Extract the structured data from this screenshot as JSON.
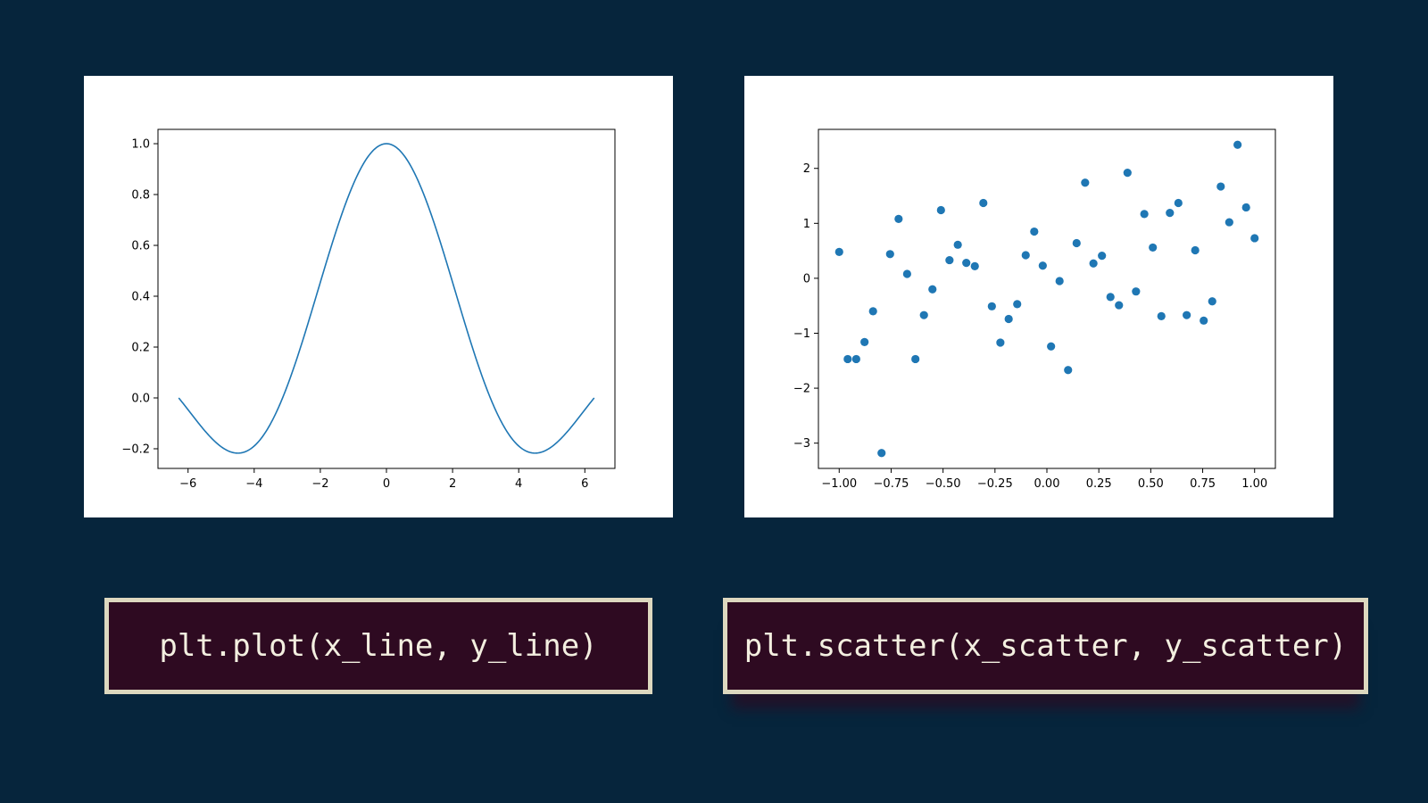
{
  "colors": {
    "background": "#06253c",
    "card": "#ffffff",
    "series": "#1f77b4",
    "code_bg": "#2e0a21",
    "code_border": "#ddd8bf",
    "code_text": "#f3efe0"
  },
  "captions": {
    "line": "plt.plot(x_line, y_line)",
    "scatter": "plt.scatter(x_scatter, y_scatter)"
  },
  "chart_data": [
    {
      "type": "line",
      "title": "",
      "xlabel": "",
      "ylabel": "",
      "function": "sin(x)/x (sampled curve)",
      "x_range": [
        -6.2832,
        6.2832
      ],
      "samples": 400,
      "xlim": [
        -6.91,
        6.91
      ],
      "ylim": [
        -0.2773,
        1.0563
      ],
      "xticks": [
        -6,
        -4,
        -2,
        0,
        2,
        4,
        6
      ],
      "xtick_labels": [
        "−6",
        "−4",
        "−2",
        "0",
        "2",
        "4",
        "6"
      ],
      "yticks": [
        -0.2,
        0.0,
        0.2,
        0.4,
        0.6,
        0.8,
        1.0
      ],
      "ytick_labels": [
        "−0.2",
        "0.0",
        "0.2",
        "0.4",
        "0.6",
        "0.8",
        "1.0"
      ],
      "grid": false,
      "legend": "none"
    },
    {
      "type": "scatter",
      "title": "",
      "xlabel": "",
      "ylabel": "",
      "x": [
        -1.0,
        -0.959,
        -0.918,
        -0.878,
        -0.837,
        -0.796,
        -0.755,
        -0.714,
        -0.673,
        -0.633,
        -0.592,
        -0.551,
        -0.51,
        -0.469,
        -0.429,
        -0.388,
        -0.347,
        -0.306,
        -0.265,
        -0.224,
        -0.184,
        -0.143,
        -0.102,
        -0.061,
        -0.02,
        0.02,
        0.061,
        0.102,
        0.143,
        0.184,
        0.224,
        0.265,
        0.306,
        0.347,
        0.388,
        0.429,
        0.469,
        0.51,
        0.551,
        0.592,
        0.633,
        0.673,
        0.714,
        0.755,
        0.796,
        0.837,
        0.878,
        0.918,
        0.959,
        1.0
      ],
      "y": [
        0.48,
        -1.47,
        -1.47,
        -1.16,
        -0.6,
        -3.18,
        0.44,
        1.08,
        0.08,
        -1.47,
        -0.67,
        -0.2,
        1.24,
        0.33,
        0.61,
        0.28,
        0.22,
        1.37,
        -0.51,
        -1.17,
        -0.74,
        -0.47,
        0.42,
        0.85,
        0.23,
        -1.24,
        -0.05,
        -1.67,
        0.64,
        1.74,
        0.27,
        0.41,
        -0.34,
        -0.49,
        1.92,
        -0.24,
        1.17,
        0.56,
        -0.69,
        1.19,
        1.37,
        -0.67,
        0.51,
        -0.77,
        -0.42,
        1.67,
        1.02,
        2.43,
        1.29,
        0.73
      ],
      "xlim": [
        -1.1,
        1.1
      ],
      "ylim": [
        -3.46,
        2.71
      ],
      "xticks": [
        -1.0,
        -0.75,
        -0.5,
        -0.25,
        0.0,
        0.25,
        0.5,
        0.75,
        1.0
      ],
      "xtick_labels": [
        "−1.00",
        "−0.75",
        "−0.50",
        "−0.25",
        "0.00",
        "0.25",
        "0.50",
        "0.75",
        "1.00"
      ],
      "yticks": [
        -3,
        -2,
        -1,
        0,
        1,
        2
      ],
      "ytick_labels": [
        "−3",
        "−2",
        "−1",
        "0",
        "1",
        "2"
      ],
      "grid": false,
      "legend": "none"
    }
  ]
}
